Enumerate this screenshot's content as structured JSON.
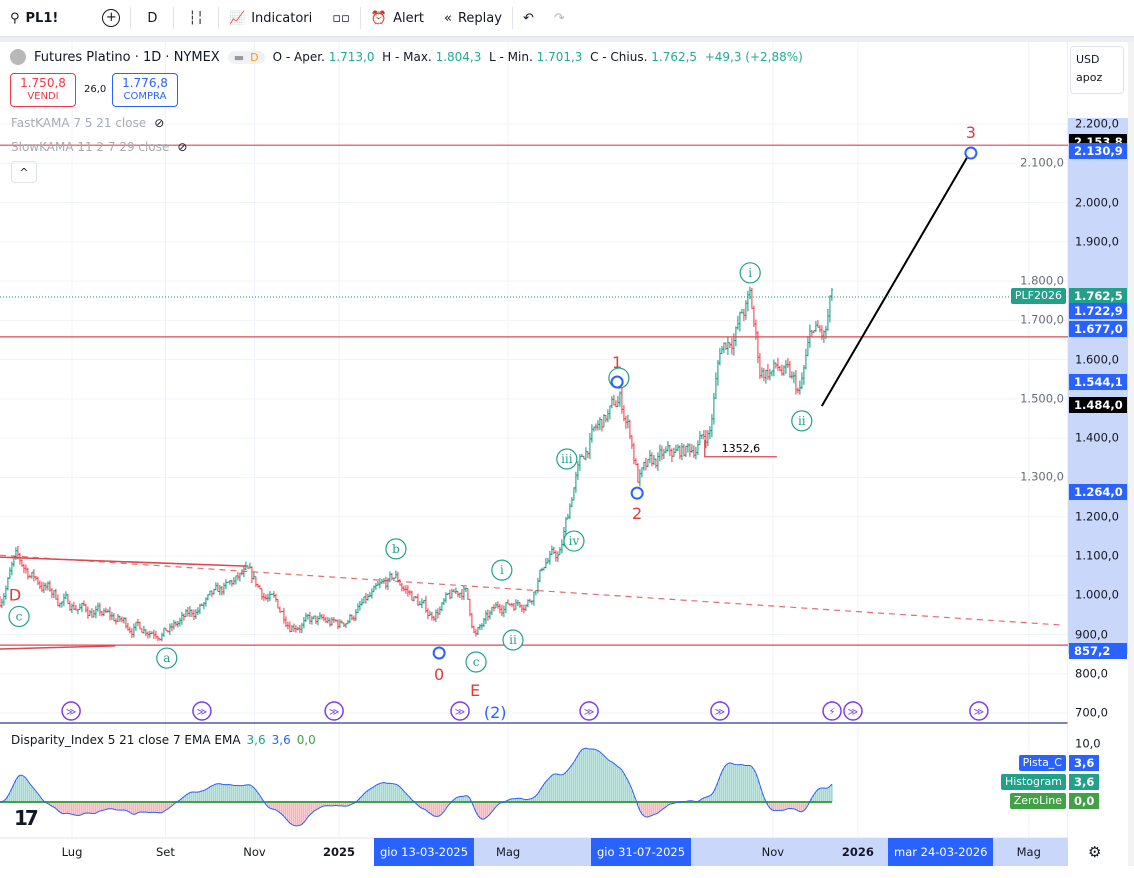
{
  "toolbar": {
    "symbol": "PL1!",
    "interval": "D",
    "indicators": "Indicatori",
    "alert": "Alert",
    "replay": "Replay"
  },
  "legend": {
    "title": "Futures Platino · 1D · NYMEX",
    "badge": "D",
    "open_label": "O - Aper.",
    "open": "1.713,0",
    "high_label": "H - Max.",
    "high": "1.804,3",
    "low_label": "L - Min.",
    "low": "1.701,3",
    "close_label": "C - Chius.",
    "close": "1.762,5",
    "change": "+49,3 (+2,88%)"
  },
  "trade": {
    "sell_price": "1.750,8",
    "sell_label": "VENDI",
    "spread": "26,0",
    "buy_price": "1.776,8",
    "buy_label": "COMPRA"
  },
  "indicators": [
    {
      "label": "FastKAMA 7 5 21 close"
    },
    {
      "label": "SlowKAMA 11 2 7 29 close"
    }
  ],
  "currency": {
    "unit": "USD",
    "mode": "apoz"
  },
  "colors": {
    "up": "#089981",
    "down": "#f23645",
    "wave": "#22a08a",
    "wave_red": "#e53935",
    "blue": "#2962ff",
    "event": "#7b3fe4",
    "line_red": "#e04650"
  },
  "chart_data": {
    "type": "ohlc",
    "symbol": "PL1!",
    "ylim": [
      700,
      2200
    ],
    "y_ticks": [
      2200,
      2100,
      2000,
      1900,
      1800,
      1700,
      1600,
      1500,
      1400,
      1300,
      1200,
      1100,
      1000,
      900,
      800,
      700
    ],
    "y_tick_labels": [
      "2.200,0",
      "2.100,0",
      "2.000,0",
      "1.900,0",
      "1.800,0",
      "1.700,0",
      "1.600,0",
      "1.500,0",
      "1.400,0",
      "1.300,0",
      "1.200,0",
      "1.100,0",
      "1.000,0",
      "900,0",
      "800,0",
      "700,0"
    ],
    "x_unit": "months since Jul 2024",
    "x_ticks": [
      {
        "t": 0,
        "label": "Lug"
      },
      {
        "t": 2.1,
        "label": "Set"
      },
      {
        "t": 4.1,
        "label": "Nov"
      },
      {
        "t": 6.0,
        "label": "2025"
      },
      {
        "t": 9.8,
        "label": "Mag"
      },
      {
        "t": 15.75,
        "label": "Nov"
      },
      {
        "t": 17.66,
        "label": "2026"
      },
      {
        "t": 21.5,
        "label": "Mag"
      }
    ],
    "price_path": [
      [
        -1.62,
        988
      ],
      [
        -1.28,
        1090
      ],
      [
        -0.27,
        988
      ],
      [
        1.3,
        924
      ],
      [
        2.2,
        911
      ],
      [
        3.89,
        1052
      ],
      [
        4.9,
        937
      ],
      [
        6.02,
        924
      ],
      [
        7.26,
        1044
      ],
      [
        8.04,
        950
      ],
      [
        8.83,
        1018
      ],
      [
        9.06,
        899
      ],
      [
        9.62,
        975
      ],
      [
        10.29,
        993
      ],
      [
        10.63,
        1090
      ],
      [
        10.97,
        1103
      ],
      [
        11.3,
        1294
      ],
      [
        11.64,
        1395
      ],
      [
        12.31,
        1497
      ],
      [
        12.54,
        1420
      ],
      [
        12.72,
        1298
      ],
      [
        13.21,
        1344
      ],
      [
        13.89,
        1370
      ],
      [
        14.34,
        1420
      ],
      [
        14.56,
        1624
      ],
      [
        14.9,
        1675
      ],
      [
        15.24,
        1752
      ],
      [
        15.46,
        1574
      ],
      [
        15.91,
        1574
      ],
      [
        16.36,
        1510
      ],
      [
        16.63,
        1675
      ],
      [
        16.92,
        1650
      ],
      [
        17.08,
        1762.5
      ]
    ],
    "price_tags": [
      {
        "value": "2.153,8",
        "price": 2153.8,
        "color": "#000000"
      },
      {
        "value": "2.130,9",
        "price": 2130.9,
        "color": "#2962ff"
      },
      {
        "value": "1.762,5",
        "price": 1762.5,
        "color": "#22a08a",
        "name": "PLF2026"
      },
      {
        "value": "1.722,9",
        "price": 1722.9,
        "color": "#2962ff"
      },
      {
        "value": "1.677,0",
        "price": 1677,
        "color": "#2962ff"
      },
      {
        "value": "1.544,1",
        "price": 1544.1,
        "color": "#2962ff"
      },
      {
        "value": "1.484,0",
        "price": 1484,
        "color": "#000000"
      },
      {
        "value": "1.264,0",
        "price": 1264,
        "color": "#2962ff"
      },
      {
        "value": "857,2",
        "price": 857.2,
        "color": "#2962ff"
      }
    ],
    "drawings": {
      "hlines": [
        2146,
        1658,
        873
      ],
      "trend_solid": [
        [
          [
            -1.62,
            1097
          ],
          [
            3.91,
            1074
          ]
        ],
        [
          [
            -1.62,
            863
          ],
          [
            0.97,
            871
          ]
        ]
      ],
      "trend_dashed": [
        [
          -1.62,
          1102
        ],
        [
          22.25,
          924
        ]
      ],
      "projection": [
        [
          16.85,
          1482
        ],
        [
          20.25,
          2141
        ]
      ],
      "measure": {
        "t1": 14.22,
        "t2": 15.84,
        "price": 1352.6,
        "top": 1396,
        "label": "1352,6"
      }
    },
    "wave_labels": [
      {
        "text": "D",
        "t": -1.28,
        "p": 1002,
        "style": "red"
      },
      {
        "text": "c",
        "t": -1.19,
        "p": 946,
        "style": "circle"
      },
      {
        "text": "a",
        "t": 2.13,
        "p": 840,
        "style": "circle"
      },
      {
        "text": "b",
        "t": 7.28,
        "p": 1118,
        "style": "circle"
      },
      {
        "text": "0",
        "t": 8.25,
        "p": 799,
        "style": "red"
      },
      {
        "text": "",
        "t": 8.25,
        "p": 853,
        "style": "blue"
      },
      {
        "text": "c",
        "t": 9.08,
        "p": 830,
        "style": "circle"
      },
      {
        "text": "E",
        "t": 9.06,
        "p": 759,
        "style": "red"
      },
      {
        "text": "(2)",
        "t": 8.94,
        "p": 703,
        "style": "bluetext"
      },
      {
        "text": "i",
        "t": 9.66,
        "p": 1064,
        "style": "circle"
      },
      {
        "text": "ii",
        "t": 9.91,
        "p": 886,
        "style": "circle"
      },
      {
        "text": "iii",
        "t": 11.12,
        "p": 1347,
        "style": "circle"
      },
      {
        "text": "iv",
        "t": 11.28,
        "p": 1138,
        "style": "circle"
      },
      {
        "text": "1",
        "t": 12.25,
        "p": 1594,
        "style": "red"
      },
      {
        "text": "",
        "t": 12.29,
        "p": 1553,
        "style": "circle"
      },
      {
        "text": "",
        "t": 12.25,
        "p": 1543,
        "style": "blue"
      },
      {
        "text": "2",
        "t": 12.7,
        "p": 1209,
        "style": "red"
      },
      {
        "text": "",
        "t": 12.7,
        "p": 1260,
        "style": "blue"
      },
      {
        "text": "i",
        "t": 15.24,
        "p": 1821,
        "style": "circle"
      },
      {
        "text": "ii",
        "t": 16.4,
        "p": 1444,
        "style": "circle"
      },
      {
        "text": "3",
        "t": 20.2,
        "p": 2180,
        "style": "red"
      },
      {
        "text": "",
        "t": 20.2,
        "p": 2126,
        "style": "blue"
      }
    ],
    "events": [
      {
        "t": -0.02,
        "type": "arrow"
      },
      {
        "t": 2.92,
        "type": "arrow"
      },
      {
        "t": 5.89,
        "type": "arrow"
      },
      {
        "t": 8.72,
        "type": "arrow"
      },
      {
        "t": 11.62,
        "type": "arrow"
      },
      {
        "t": 14.56,
        "type": "arrow"
      },
      {
        "t": 17.08,
        "type": "lightning"
      },
      {
        "t": 17.55,
        "type": "arrow"
      },
      {
        "t": 20.38,
        "type": "arrow"
      }
    ],
    "oscillator": {
      "title": "Disparity_Index 5 21 close 7 EMA EMA",
      "v1": "3,6",
      "v2": "3,6",
      "v3": "0,0",
      "ylim_top_label": "10,0",
      "ylim_top": 10,
      "tags": [
        {
          "name": "Pista_C",
          "value": "3,6",
          "color": "#2962ff"
        },
        {
          "name": "Histogram",
          "value": "3,6",
          "color": "#22a08a"
        },
        {
          "name": "ZeroLine",
          "value": "0,0",
          "color": "#43a047"
        }
      ]
    }
  },
  "time_axis": {
    "cursor_labels": [
      "gio 13-03-2025",
      "gio 31-07-2025",
      "mar 24-03-2026"
    ]
  }
}
